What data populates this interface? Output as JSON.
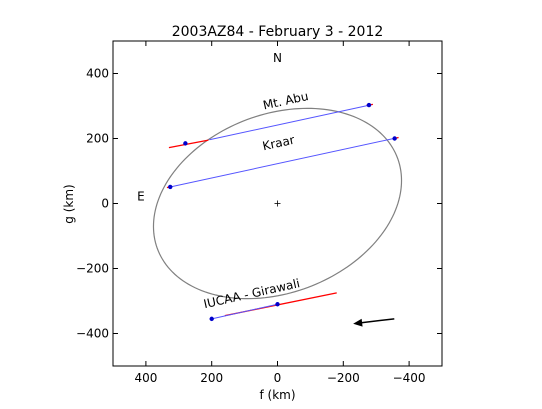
{
  "chart_data": {
    "type": "scatter",
    "title": "2003AZ84 - February 3 - 2012",
    "xlabel": "f (km)",
    "ylabel": "g (km)",
    "xlim": [
      500,
      -500
    ],
    "ylim": [
      -500,
      500
    ],
    "x_ticks": [
      400,
      200,
      0,
      -200,
      -400
    ],
    "y_ticks": [
      400,
      200,
      0,
      -200,
      -400
    ],
    "x_tick_labels": [
      "400",
      "200",
      "0",
      "−200",
      "−400"
    ],
    "y_tick_labels": [
      "400",
      "200",
      "0",
      "−200",
      "−400"
    ],
    "grid": false,
    "ellipse": {
      "center": [
        0,
        0
      ],
      "vertices": [
        [
          -140,
          290
        ],
        [
          140,
          -290
        ],
        [
          350,
          40
        ],
        [
          -350,
          -40
        ],
        [
          -285,
          244
        ],
        [
          285,
          -244
        ],
        [
          -43,
          300
        ],
        [
          43,
          -300
        ]
      ]
    },
    "center_marker": [
      0,
      0
    ],
    "chords": [
      {
        "name": "Mt. Abu",
        "line": [
          [
            207,
            196
          ],
          [
            -285,
            304
          ]
        ],
        "error_segments": [
          [
            [
              330,
              172
            ],
            [
              210,
              195
            ]
          ],
          [
            [
              -270,
              302
            ],
            [
              -290,
              305
            ]
          ]
        ],
        "points": [
          [
            280,
            185
          ],
          [
            -278,
            303
          ]
        ]
      },
      {
        "name": "Kraar",
        "line": [
          [
            330,
            50
          ],
          [
            -362,
            202
          ]
        ],
        "error_segments": [
          [
            [
              336,
              49
            ],
            [
              322,
              53
            ]
          ],
          [
            [
              -350,
              199
            ],
            [
              -368,
              203
            ]
          ]
        ],
        "points": [
          [
            326,
            51
          ],
          [
            -356,
            200
          ]
        ]
      },
      {
        "name": "IUCAA - Girawali",
        "line": [
          [
            200,
            -355
          ],
          [
            0,
            -310
          ]
        ],
        "error_segments": [
          [
            [
              160,
              -345
            ],
            [
              -180,
              -275
            ]
          ]
        ],
        "points": [
          [
            200,
            -355
          ],
          [
            0,
            -310
          ]
        ]
      }
    ],
    "annotations": [
      {
        "text": "N",
        "x": 0,
        "y": 435
      },
      {
        "text": "E",
        "x": 415,
        "y": 10
      }
    ],
    "arrow": {
      "from": [
        -355,
        -355
      ],
      "to": [
        -230,
        -370
      ]
    }
  }
}
